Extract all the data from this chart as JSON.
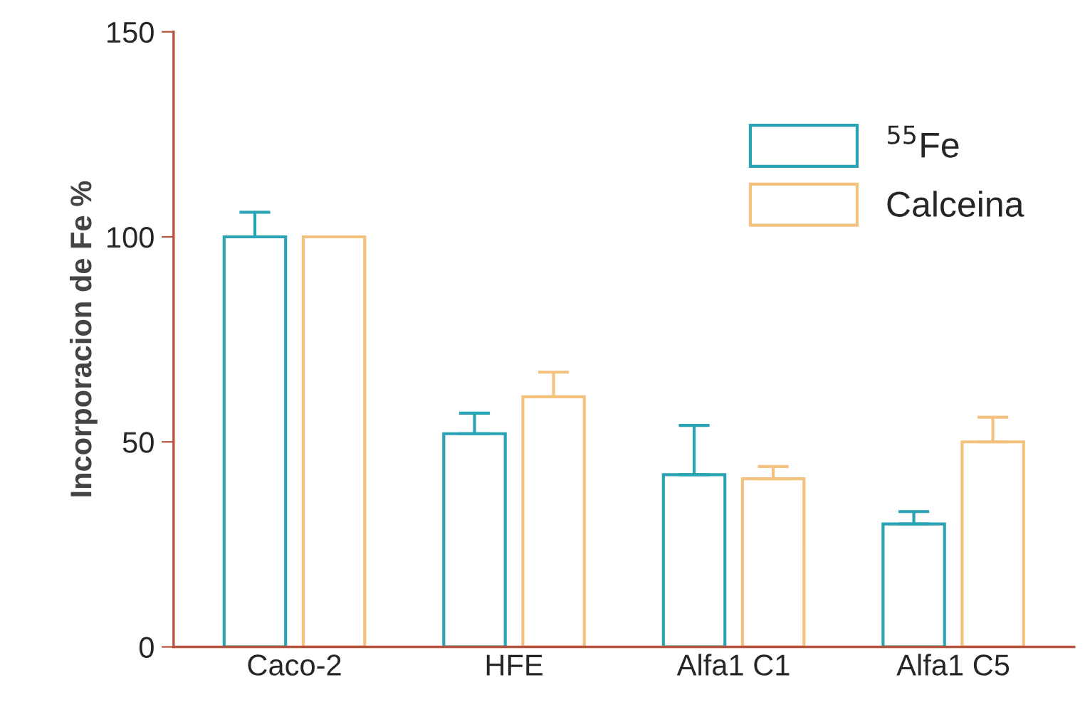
{
  "chart_data": {
    "type": "bar",
    "ylabel": "Incorporacion de Fe %",
    "categories": [
      "Caco-2",
      "HFE",
      "Alfa1 C1",
      "Alfa1 C5"
    ],
    "series": [
      {
        "name": "$^{55}$Fe",
        "color": "#2aa3b5",
        "values": [
          100,
          52,
          42,
          30
        ],
        "errors": [
          [
            100,
            106
          ],
          [
            52,
            57
          ],
          [
            42,
            54
          ],
          [
            30,
            33
          ]
        ]
      },
      {
        "name": "Calceina",
        "color": "#f3c27e",
        "values": [
          100,
          61,
          41,
          50
        ],
        "errors": [
          null,
          [
            61,
            67
          ],
          [
            41,
            44
          ],
          [
            50,
            56
          ]
        ]
      }
    ],
    "ylim": [
      0,
      150
    ],
    "yticks": [
      0,
      50,
      100,
      150
    ],
    "grid": false,
    "legend": "top right"
  }
}
